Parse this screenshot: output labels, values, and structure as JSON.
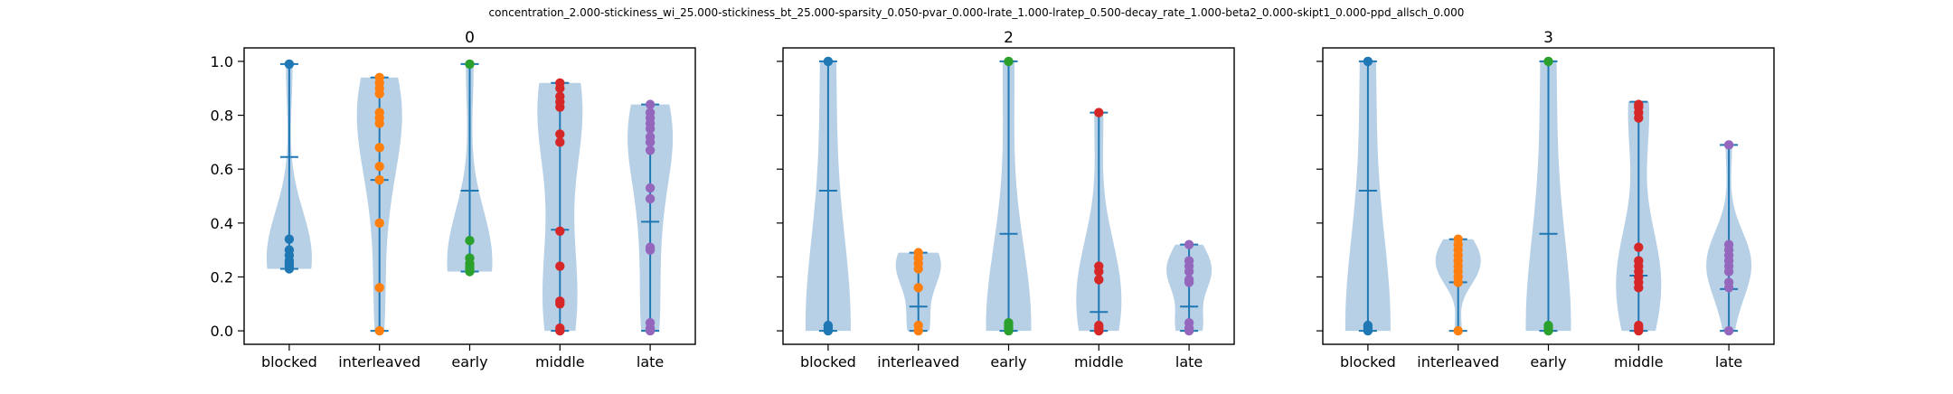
{
  "figure": {
    "suptitle": "concentration_2.000-stickiness_wi_25.000-stickiness_bt_25.000-sparsity_0.050-pvar_0.000-lrate_1.000-lratep_0.500-decay_rate_1.000-beta2_0.000-skipt1_0.000-ppd_allsch_0.000"
  },
  "colors": {
    "violin_fill": "#aac8e2",
    "violin_lines": "#1f77b4",
    "points": [
      "#1f77b4",
      "#ff7f0e",
      "#2ca02c",
      "#d62728",
      "#9467bd"
    ]
  },
  "chart_data": [
    {
      "type": "violin",
      "title": "0",
      "categories": [
        "blocked",
        "interleaved",
        "early",
        "middle",
        "late"
      ],
      "ylim": [
        -0.05,
        1.05
      ],
      "yticks": [
        "0.0",
        "0.2",
        "0.4",
        "0.6",
        "0.8",
        "1.0"
      ],
      "series": [
        {
          "min": 0.23,
          "max": 0.99,
          "median": 0.645,
          "points": [
            0.99,
            0.34,
            0.3,
            0.28,
            0.26,
            0.25,
            0.24,
            0.23
          ]
        },
        {
          "min": 0.0,
          "max": 0.94,
          "median": 0.56,
          "points": [
            0.94,
            0.92,
            0.9,
            0.88,
            0.81,
            0.79,
            0.77,
            0.68,
            0.61,
            0.56,
            0.4,
            0.16,
            0.0
          ]
        },
        {
          "min": 0.22,
          "max": 0.99,
          "median": 0.52,
          "points": [
            0.99,
            0.335,
            0.27,
            0.25,
            0.24,
            0.23,
            0.22
          ]
        },
        {
          "min": 0.0,
          "max": 0.92,
          "median": 0.375,
          "points": [
            0.92,
            0.9,
            0.87,
            0.85,
            0.83,
            0.73,
            0.7,
            0.37,
            0.24,
            0.11,
            0.1,
            0.01,
            0.0
          ]
        },
        {
          "min": 0.0,
          "max": 0.84,
          "median": 0.405,
          "points": [
            0.84,
            0.81,
            0.79,
            0.77,
            0.75,
            0.72,
            0.7,
            0.67,
            0.53,
            0.49,
            0.31,
            0.3,
            0.03,
            0.01,
            0.0
          ]
        }
      ]
    },
    {
      "type": "violin",
      "title": "2",
      "categories": [
        "blocked",
        "interleaved",
        "early",
        "middle",
        "late"
      ],
      "ylim": [
        -0.05,
        1.05
      ],
      "yticks": [
        "0.0",
        "0.2",
        "0.4",
        "0.6",
        "0.8",
        "1.0"
      ],
      "series": [
        {
          "min": 0.0,
          "max": 1.0,
          "median": 0.52,
          "points": [
            1.0,
            0.02,
            0.01,
            0.0
          ]
        },
        {
          "min": 0.0,
          "max": 0.29,
          "median": 0.09,
          "points": [
            0.29,
            0.27,
            0.25,
            0.23,
            0.16,
            0.02,
            0.0
          ]
        },
        {
          "min": 0.0,
          "max": 1.0,
          "median": 0.36,
          "points": [
            1.0,
            0.03,
            0.02,
            0.01,
            0.0
          ]
        },
        {
          "min": 0.0,
          "max": 0.81,
          "median": 0.07,
          "points": [
            0.81,
            0.24,
            0.22,
            0.19,
            0.02,
            0.01,
            0.0
          ]
        },
        {
          "min": 0.0,
          "max": 0.32,
          "median": 0.09,
          "points": [
            0.32,
            0.26,
            0.24,
            0.22,
            0.19,
            0.18,
            0.03,
            0.01,
            0.0
          ]
        }
      ]
    },
    {
      "type": "violin",
      "title": "3",
      "categories": [
        "blocked",
        "interleaved",
        "early",
        "middle",
        "late"
      ],
      "ylim": [
        -0.05,
        1.05
      ],
      "yticks": [
        "0.0",
        "0.2",
        "0.4",
        "0.6",
        "0.8",
        "1.0"
      ],
      "series": [
        {
          "min": 0.0,
          "max": 1.0,
          "median": 0.52,
          "points": [
            1.0,
            0.02,
            0.01,
            0.0
          ]
        },
        {
          "min": 0.0,
          "max": 0.34,
          "median": 0.18,
          "points": [
            0.34,
            0.32,
            0.3,
            0.28,
            0.26,
            0.24,
            0.22,
            0.2,
            0.18,
            0.0
          ]
        },
        {
          "min": 0.0,
          "max": 1.0,
          "median": 0.36,
          "points": [
            1.0,
            0.02,
            0.01,
            0.0
          ]
        },
        {
          "min": 0.0,
          "max": 0.85,
          "median": 0.205,
          "points": [
            0.84,
            0.83,
            0.81,
            0.79,
            0.31,
            0.26,
            0.24,
            0.22,
            0.2,
            0.18,
            0.16,
            0.02,
            0.01,
            0.0
          ]
        },
        {
          "min": 0.0,
          "max": 0.69,
          "median": 0.155,
          "points": [
            0.69,
            0.32,
            0.3,
            0.28,
            0.26,
            0.24,
            0.22,
            0.18,
            0.16,
            0.0
          ]
        }
      ]
    }
  ]
}
